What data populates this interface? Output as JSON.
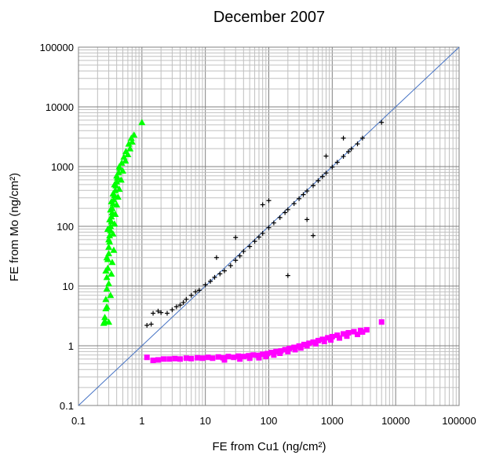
{
  "chart_data": {
    "type": "scatter",
    "title": "December 2007",
    "xlabel": "FE from Cu1 (ng/cm²)",
    "ylabel": "FE from Mo (ng/cm²)",
    "xscale": "log",
    "yscale": "log",
    "xlim": [
      0.1,
      100000
    ],
    "ylim": [
      0.1,
      100000
    ],
    "grid": true,
    "legend": "none",
    "x_ticks": [
      "0.1",
      "1",
      "10",
      "100",
      "1000",
      "10000",
      "100000"
    ],
    "y_ticks": [
      "0.1",
      "1",
      "10",
      "100",
      "1000",
      "10000",
      "100000"
    ],
    "reference_line": {
      "x": [
        0.1,
        100000
      ],
      "y": [
        0.1,
        100000
      ],
      "color": "#4472C4"
    },
    "series": [
      {
        "marker": "triangle",
        "color": "#00FF00",
        "points": [
          [
            0.25,
            2.4
          ],
          [
            0.26,
            3.0
          ],
          [
            0.27,
            4.2
          ],
          [
            0.27,
            6
          ],
          [
            0.28,
            9
          ],
          [
            0.28,
            14
          ],
          [
            0.29,
            20
          ],
          [
            0.29,
            28
          ],
          [
            0.3,
            35
          ],
          [
            0.3,
            45
          ],
          [
            0.31,
            55
          ],
          [
            0.31,
            70
          ],
          [
            0.32,
            85
          ],
          [
            0.32,
            100
          ],
          [
            0.33,
            120
          ],
          [
            0.33,
            145
          ],
          [
            0.34,
            170
          ],
          [
            0.34,
            200
          ],
          [
            0.35,
            240
          ],
          [
            0.36,
            280
          ],
          [
            0.37,
            330
          ],
          [
            0.38,
            400
          ],
          [
            0.39,
            480
          ],
          [
            0.4,
            560
          ],
          [
            0.41,
            650
          ],
          [
            0.43,
            800
          ],
          [
            0.45,
            950
          ],
          [
            0.48,
            1150
          ],
          [
            0.52,
            1450
          ],
          [
            0.56,
            1800
          ],
          [
            0.62,
            2400
          ],
          [
            0.68,
            3000
          ],
          [
            0.75,
            3400
          ],
          [
            1.0,
            5500
          ],
          [
            0.26,
            2.6
          ],
          [
            0.3,
            2.5
          ],
          [
            0.28,
            4.5
          ],
          [
            0.32,
            7
          ],
          [
            0.3,
            11
          ],
          [
            0.33,
            16
          ],
          [
            0.27,
            18
          ],
          [
            0.34,
            25
          ],
          [
            0.28,
            30
          ],
          [
            0.36,
            40
          ],
          [
            0.3,
            60
          ],
          [
            0.35,
            75
          ],
          [
            0.29,
            90
          ],
          [
            0.37,
            110
          ],
          [
            0.31,
            130
          ],
          [
            0.38,
            160
          ],
          [
            0.32,
            190
          ],
          [
            0.4,
            230
          ],
          [
            0.33,
            260
          ],
          [
            0.42,
            310
          ],
          [
            0.35,
            350
          ],
          [
            0.44,
            420
          ],
          [
            0.37,
            500
          ],
          [
            0.47,
            600
          ],
          [
            0.4,
            700
          ],
          [
            0.5,
            850
          ],
          [
            0.44,
            1000
          ],
          [
            0.55,
            1250
          ],
          [
            0.6,
            1600
          ],
          [
            0.65,
            2000
          ],
          [
            0.7,
            2600
          ]
        ]
      },
      {
        "marker": "square",
        "color": "#FF00FF",
        "points": [
          [
            1.2,
            0.64
          ],
          [
            1.5,
            0.57
          ],
          [
            1.8,
            0.58
          ],
          [
            2.2,
            0.6
          ],
          [
            2.7,
            0.6
          ],
          [
            3.3,
            0.61
          ],
          [
            4.0,
            0.6
          ],
          [
            5.0,
            0.62
          ],
          [
            6.0,
            0.61
          ],
          [
            7.5,
            0.63
          ],
          [
            9.0,
            0.62
          ],
          [
            11,
            0.64
          ],
          [
            13,
            0.62
          ],
          [
            16,
            0.65
          ],
          [
            19,
            0.63
          ],
          [
            23,
            0.66
          ],
          [
            28,
            0.64
          ],
          [
            33,
            0.67
          ],
          [
            40,
            0.66
          ],
          [
            48,
            0.68
          ],
          [
            57,
            0.7
          ],
          [
            68,
            0.69
          ],
          [
            80,
            0.72
          ],
          [
            95,
            0.74
          ],
          [
            110,
            0.77
          ],
          [
            130,
            0.8
          ],
          [
            155,
            0.82
          ],
          [
            180,
            0.86
          ],
          [
            210,
            0.9
          ],
          [
            250,
            0.94
          ],
          [
            300,
            0.99
          ],
          [
            360,
            1.05
          ],
          [
            430,
            1.1
          ],
          [
            500,
            1.15
          ],
          [
            600,
            1.22
          ],
          [
            700,
            1.28
          ],
          [
            850,
            1.36
          ],
          [
            1000,
            1.42
          ],
          [
            1200,
            1.5
          ],
          [
            1500,
            1.58
          ],
          [
            1800,
            1.65
          ],
          [
            2200,
            1.72
          ],
          [
            2800,
            1.8
          ],
          [
            3500,
            1.85
          ],
          [
            6000,
            2.5
          ],
          [
            20,
            0.58
          ],
          [
            35,
            0.6
          ],
          [
            50,
            0.62
          ],
          [
            70,
            0.63
          ],
          [
            90,
            0.66
          ],
          [
            120,
            0.7
          ],
          [
            150,
            0.75
          ],
          [
            200,
            0.8
          ],
          [
            260,
            0.86
          ],
          [
            320,
            0.92
          ],
          [
            400,
            1.0
          ],
          [
            550,
            1.08
          ],
          [
            750,
            1.18
          ],
          [
            950,
            1.25
          ],
          [
            1300,
            1.35
          ],
          [
            1700,
            1.45
          ],
          [
            2500,
            1.55
          ],
          [
            3000,
            1.7
          ]
        ]
      },
      {
        "marker": "plus",
        "color": "#000000",
        "points": [
          [
            1.2,
            2.2
          ],
          [
            1.4,
            2.3
          ],
          [
            1.5,
            3.5
          ],
          [
            1.8,
            3.8
          ],
          [
            2.0,
            3.6
          ],
          [
            2.5,
            3.5
          ],
          [
            3.0,
            4.0
          ],
          [
            3.5,
            4.5
          ],
          [
            4.0,
            4.8
          ],
          [
            4.5,
            5.3
          ],
          [
            5.0,
            6.0
          ],
          [
            6.0,
            7.0
          ],
          [
            7.0,
            8.0
          ],
          [
            8.0,
            8.5
          ],
          [
            10,
            10.5
          ],
          [
            12,
            12
          ],
          [
            14,
            14
          ],
          [
            17,
            16
          ],
          [
            20,
            18
          ],
          [
            25,
            22
          ],
          [
            30,
            27
          ],
          [
            35,
            32
          ],
          [
            40,
            38
          ],
          [
            50,
            46
          ],
          [
            60,
            56
          ],
          [
            70,
            66
          ],
          [
            80,
            76
          ],
          [
            100,
            95
          ],
          [
            120,
            114
          ],
          [
            150,
            140
          ],
          [
            180,
            170
          ],
          [
            200,
            190
          ],
          [
            250,
            240
          ],
          [
            300,
            290
          ],
          [
            350,
            340
          ],
          [
            400,
            390
          ],
          [
            500,
            480
          ],
          [
            600,
            580
          ],
          [
            700,
            680
          ],
          [
            800,
            780
          ],
          [
            1000,
            980
          ],
          [
            1200,
            1180
          ],
          [
            1500,
            1480
          ],
          [
            1800,
            1780
          ],
          [
            2000,
            1980
          ],
          [
            2500,
            2400
          ],
          [
            3000,
            3000
          ],
          [
            6000,
            5500
          ],
          [
            800,
            1500
          ],
          [
            100,
            270
          ],
          [
            400,
            130
          ],
          [
            500,
            70
          ],
          [
            80,
            230
          ],
          [
            200,
            15
          ],
          [
            15,
            30
          ],
          [
            1500,
            3000
          ],
          [
            30,
            65
          ]
        ]
      }
    ]
  }
}
